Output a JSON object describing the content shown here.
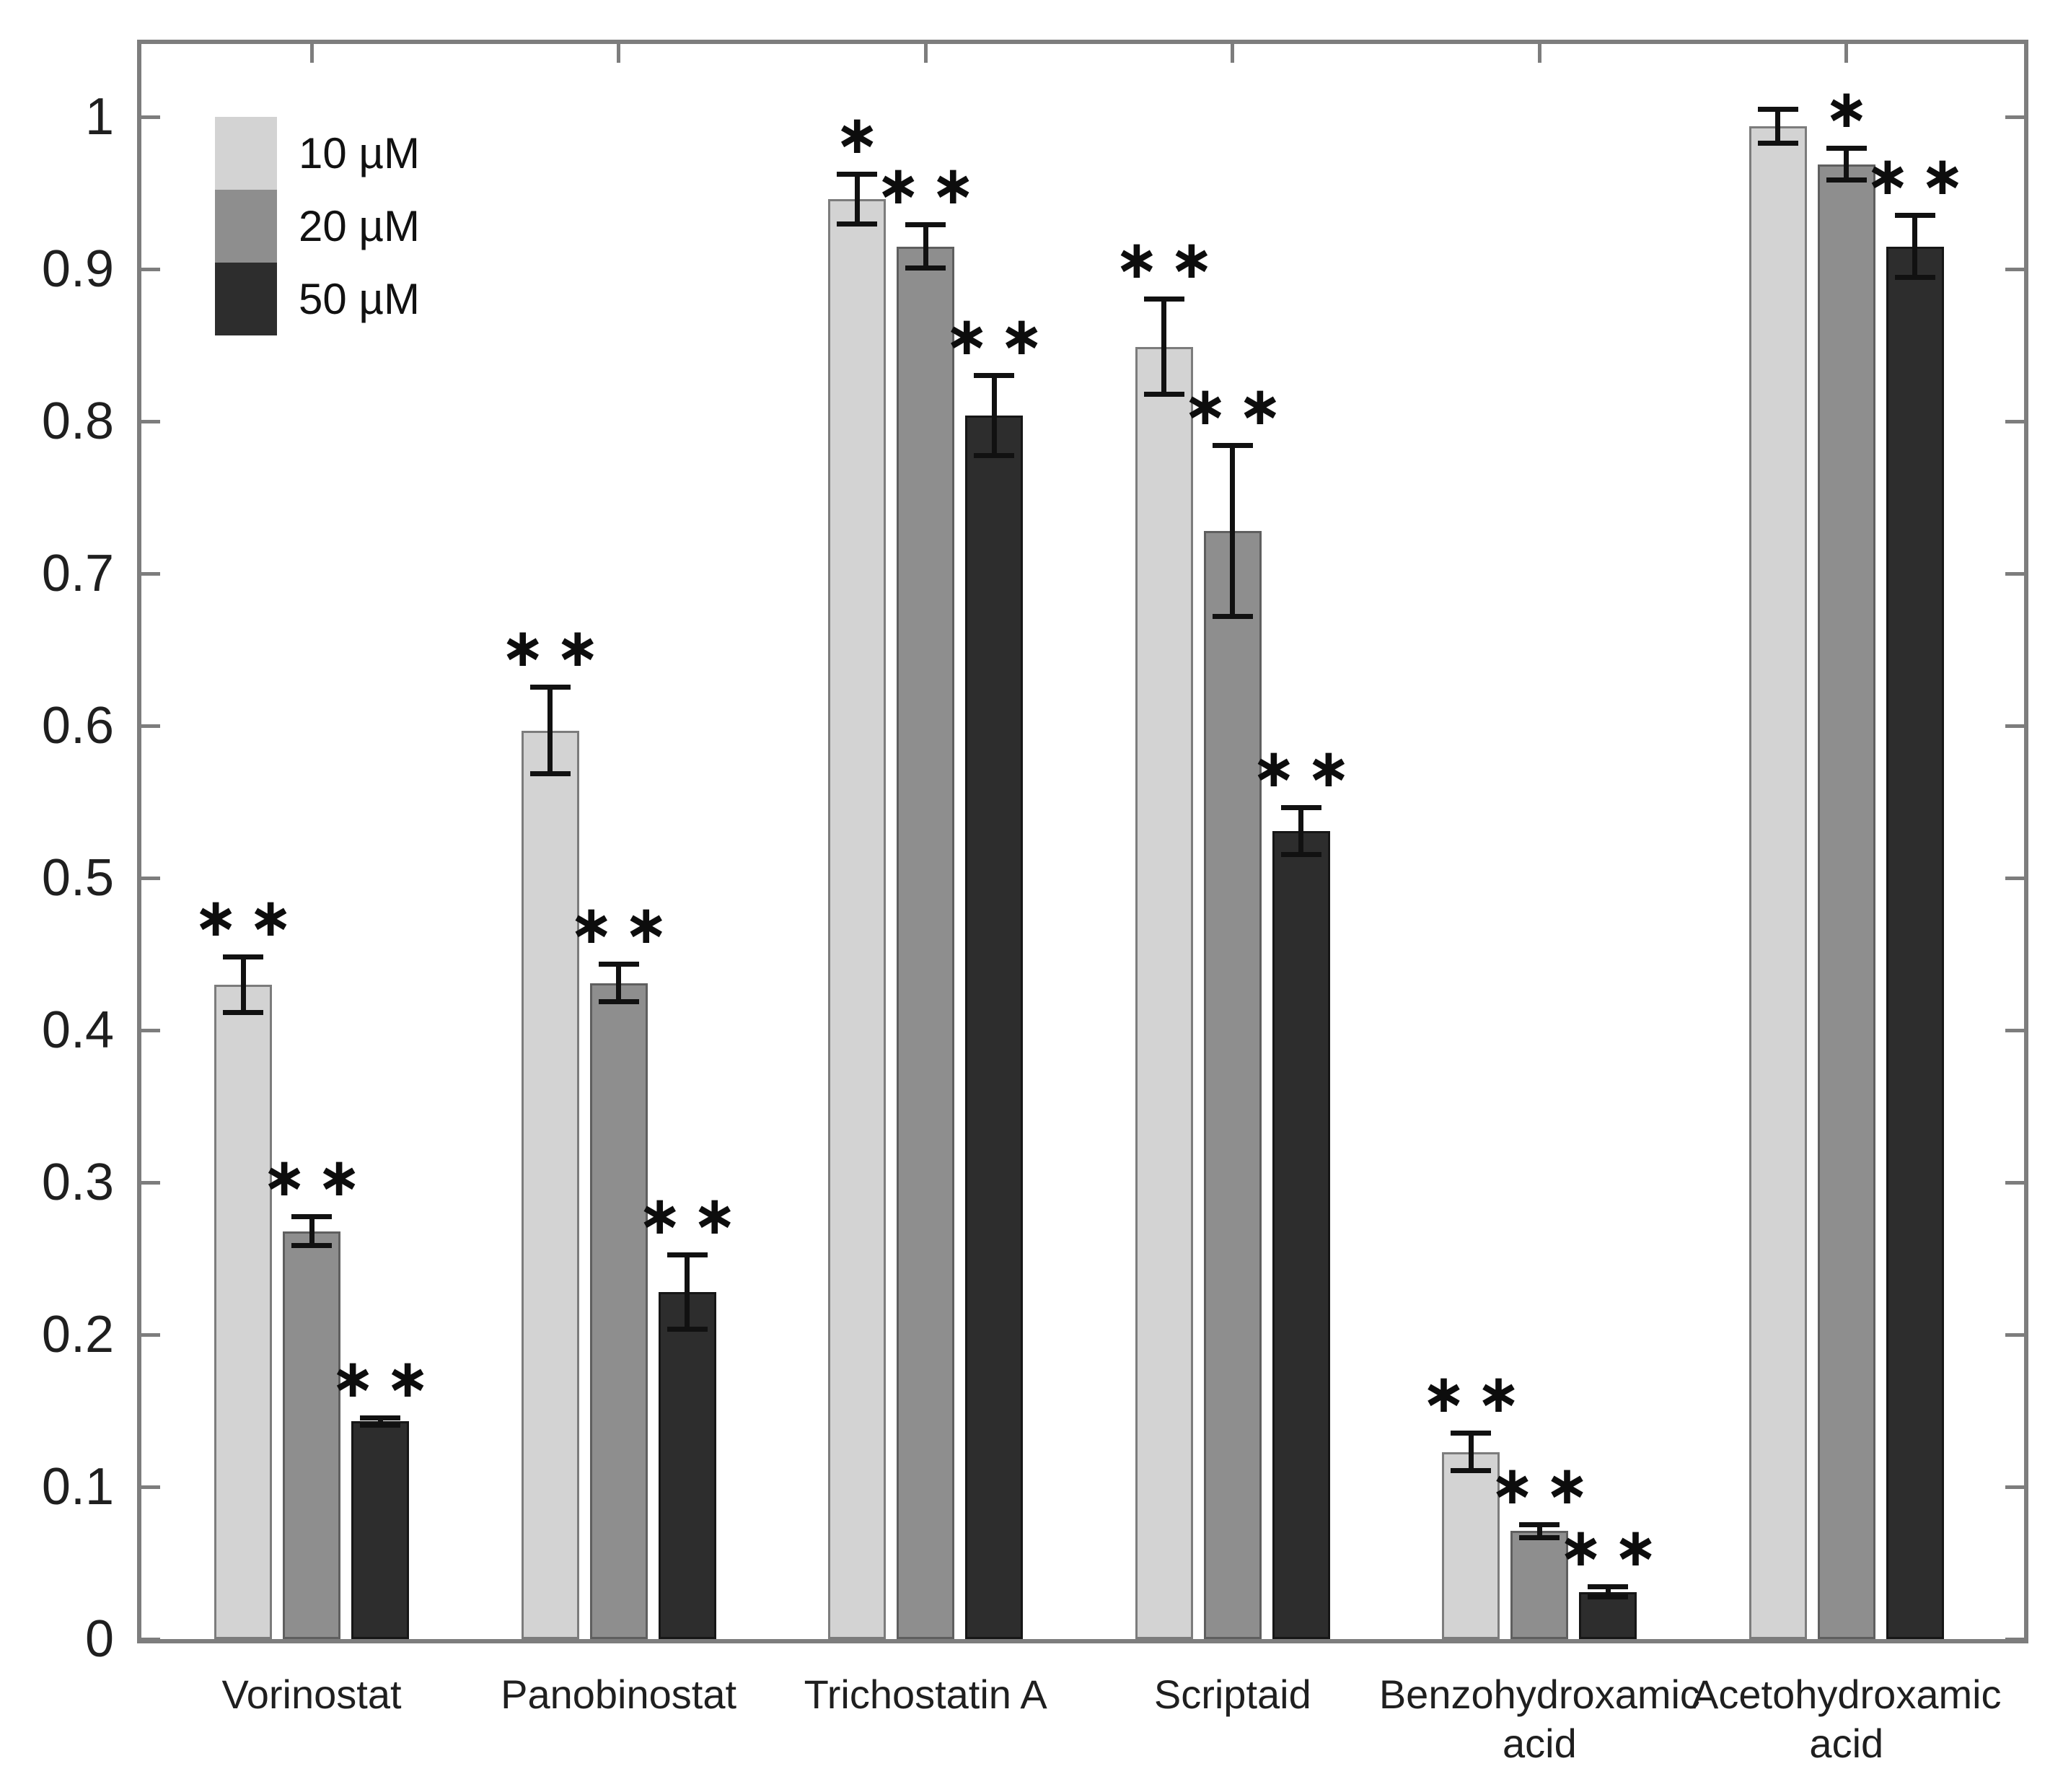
{
  "figure": {
    "background": "#ffffff",
    "title": ""
  },
  "chart_data": {
    "type": "bar",
    "title": "",
    "xlabel": "",
    "ylabel": "",
    "categories": [
      "Vorinostat",
      "Panobinostat",
      "Trichostatin A",
      "Scriptaid",
      "Benzohydroxamic\nacid",
      "Acetohydroxamic\nacid"
    ],
    "series": [
      {
        "name": "10 µM",
        "color": "#d3d3d3",
        "edge_color": "#7c7c7c",
        "values": [
          0.43,
          0.597,
          0.946,
          0.849,
          0.123,
          0.994
        ],
        "errors": [
          0.02,
          0.03,
          0.018,
          0.033,
          0.014,
          0.013
        ],
        "significance": [
          "∗∗",
          "∗∗",
          "∗",
          "∗∗",
          "∗∗",
          ""
        ]
      },
      {
        "name": "20 µM",
        "color": "#8e8e8e",
        "edge_color": "#5f5f5f",
        "values": [
          0.268,
          0.431,
          0.915,
          0.728,
          0.071,
          0.969
        ],
        "errors": [
          0.011,
          0.014,
          0.016,
          0.058,
          0.006,
          0.012
        ],
        "significance": [
          "∗∗",
          "∗∗",
          "∗∗",
          "∗∗",
          "∗∗",
          "∗"
        ]
      },
      {
        "name": "50 µM",
        "color": "#2d2d2d",
        "edge_color": "#161616",
        "values": [
          0.143,
          0.228,
          0.804,
          0.531,
          0.031,
          0.915
        ],
        "errors": [
          0.004,
          0.026,
          0.028,
          0.017,
          0.005,
          0.022
        ],
        "significance": [
          "∗∗",
          "∗∗",
          "∗∗",
          "∗∗",
          "∗∗",
          "∗∗"
        ]
      }
    ],
    "error_bars": true,
    "ylim": [
      0,
      1.048
    ],
    "yticks": [
      0,
      0.1,
      0.2,
      0.3,
      0.4,
      0.5,
      0.6,
      0.7,
      0.8,
      0.9,
      1
    ],
    "ytick_labels": [
      "0",
      "0.1",
      "0.2",
      "0.3",
      "0.4",
      "0.5",
      "0.6",
      "0.7",
      "0.8",
      "0.9",
      "1"
    ],
    "grid": false,
    "legend_position": "top-left",
    "axis_color": "#7d7d7d"
  }
}
